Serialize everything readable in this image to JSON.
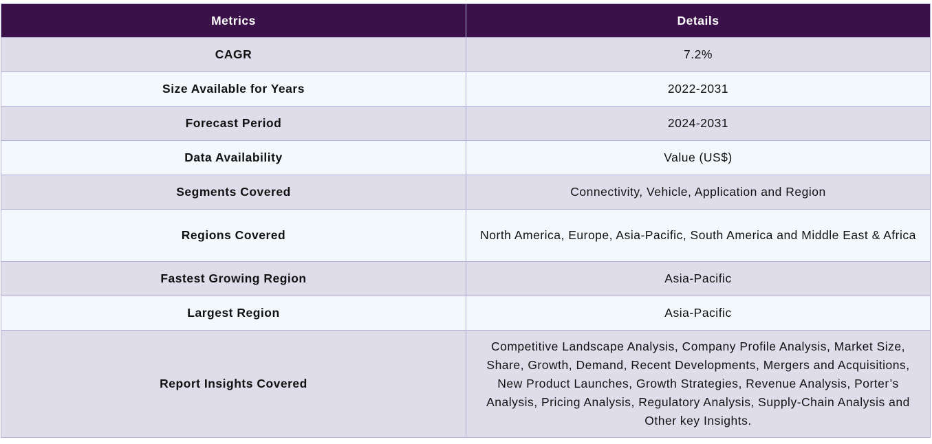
{
  "table": {
    "headers": {
      "metrics": "Metrics",
      "details": "Details"
    },
    "rows": [
      {
        "metric": "CAGR",
        "detail": "7.2%"
      },
      {
        "metric": "Size Available for Years",
        "detail": "2022-2031"
      },
      {
        "metric": "Forecast Period",
        "detail": "2024-2031"
      },
      {
        "metric": "Data Availability",
        "detail": "Value (US$)"
      },
      {
        "metric": "Segments Covered",
        "detail": "Connectivity, Vehicle, Application and Region"
      },
      {
        "metric": "Regions Covered",
        "detail": "North America, Europe, Asia-Pacific, South America and Middle East & Africa"
      },
      {
        "metric": "Fastest Growing Region",
        "detail": "Asia-Pacific"
      },
      {
        "metric": "Largest Region",
        "detail": "Asia-Pacific"
      },
      {
        "metric": "Report Insights Covered",
        "detail": "Competitive Landscape Analysis, Company Profile Analysis, Market Size, Share, Growth, Demand, Recent Developments, Mergers and Acquisitions, New Product Launches, Growth Strategies, Revenue Analysis, Porter’s Analysis, Pricing Analysis, Regulatory Analysis, Supply-Chain Analysis and Other key Insights."
      }
    ]
  },
  "colors": {
    "header_bg": "#3a1148",
    "header_text": "#ffffff",
    "row_odd_bg": "#e0ddea",
    "row_even_bg": "#f2f8fc",
    "border": "#b3aed6"
  }
}
